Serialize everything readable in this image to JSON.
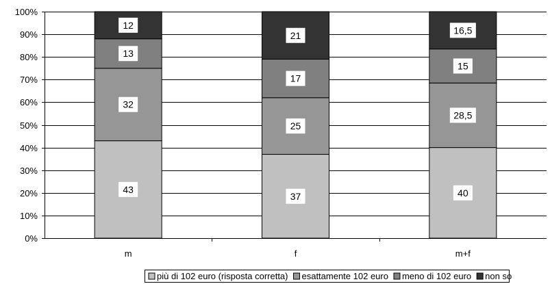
{
  "chart_data": {
    "type": "bar",
    "stacked": true,
    "percent": true,
    "categories": [
      "m",
      "f",
      "m+f"
    ],
    "series": [
      {
        "name": "più di 102 euro (risposta corretta)",
        "values": [
          43,
          37,
          40
        ],
        "labels": [
          "43",
          "37",
          "40"
        ],
        "color": "#c0c0c0"
      },
      {
        "name": "esattamente 102 euro",
        "values": [
          32,
          25,
          28.5
        ],
        "labels": [
          "32",
          "25",
          "28,5"
        ],
        "color": "#969696"
      },
      {
        "name": "meno di 102 euro",
        "values": [
          13,
          17,
          15
        ],
        "labels": [
          "13",
          "17",
          "15"
        ],
        "color": "#808080"
      },
      {
        "name": "non so",
        "values": [
          12,
          21,
          16.5
        ],
        "labels": [
          "12",
          "21",
          "16,5"
        ],
        "color": "#333333"
      }
    ],
    "y_ticks": [
      "0%",
      "10%",
      "20%",
      "30%",
      "40%",
      "50%",
      "60%",
      "70%",
      "80%",
      "90%",
      "100%"
    ],
    "ylim": [
      0,
      100
    ],
    "grid": true,
    "legend_position": "bottom"
  }
}
